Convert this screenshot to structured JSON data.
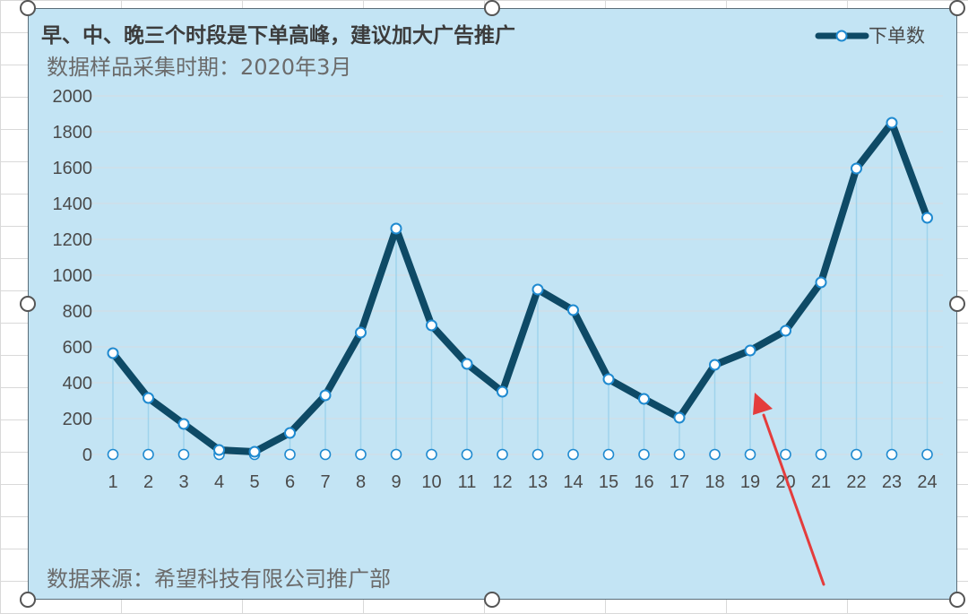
{
  "chart_data": {
    "type": "line",
    "title": "早、中、晚三个时段是下单高峰，建议加大广告推广",
    "subtitle": "数据样品采集时期：2020年3月",
    "source": "数据来源：希望科技有限公司推广部",
    "xlabel": "",
    "ylabel": "",
    "x": [
      1,
      2,
      3,
      4,
      5,
      6,
      7,
      8,
      9,
      10,
      11,
      12,
      13,
      14,
      15,
      16,
      17,
      18,
      19,
      20,
      21,
      22,
      23,
      24
    ],
    "series": [
      {
        "name": "下单数",
        "values": [
          565,
          315,
          170,
          25,
          15,
          120,
          330,
          680,
          1260,
          720,
          505,
          350,
          920,
          805,
          420,
          310,
          205,
          500,
          580,
          690,
          960,
          1595,
          1850,
          1320
        ]
      }
    ],
    "ylim": [
      0,
      2000
    ],
    "yticks": [
      0,
      200,
      400,
      600,
      800,
      1000,
      1200,
      1400,
      1600,
      1800,
      2000
    ],
    "grid": true,
    "legend_position": "top-right",
    "colors": {
      "line": "#0e4a66",
      "marker_fill": "#ffffff",
      "marker_stroke": "#1f8ad0",
      "drop_line": "#9fd3ec",
      "background": "#c3e4f4",
      "gridline": "#d4dce2",
      "annotation_arrow": "#e43c3c"
    },
    "annotation": "red-arrow"
  }
}
